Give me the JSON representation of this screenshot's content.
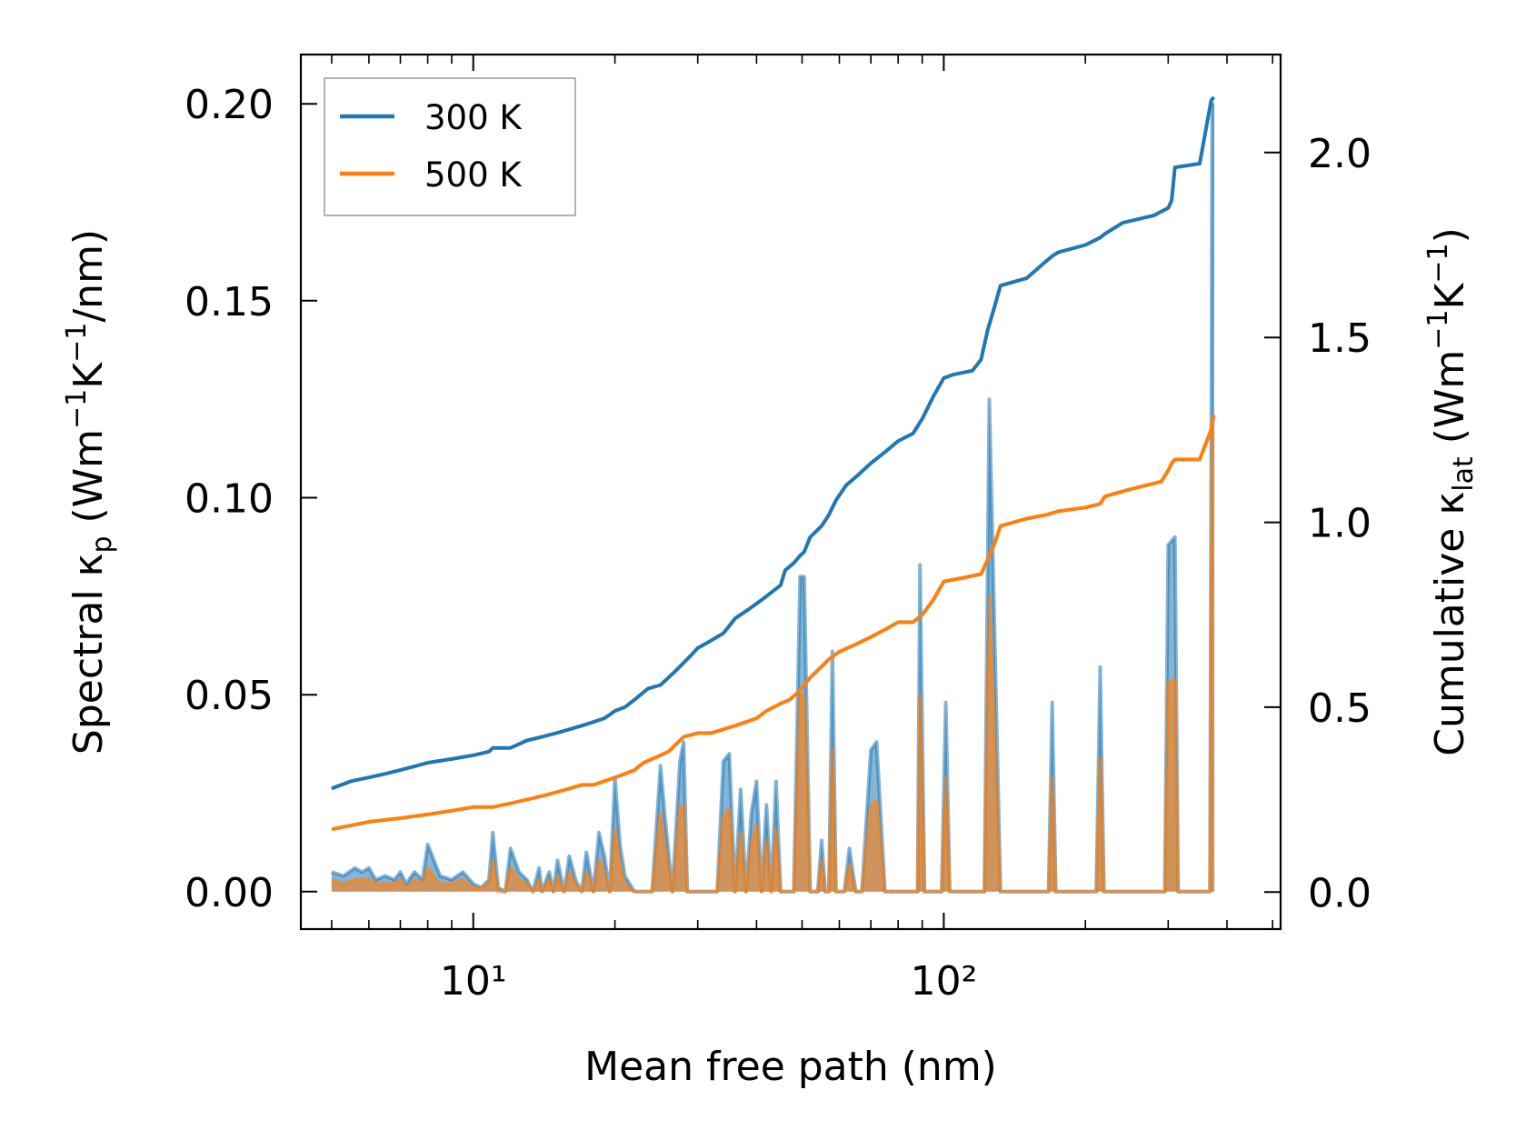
{
  "chart_data": {
    "type": "line",
    "x_scale": "log",
    "xlabel": "Mean free path (nm)",
    "ylabel_left": "Spectral κp (Wm−1K−1/nm)",
    "ylabel_right": "Cumulative κlat (Wm−1K−1)",
    "xlim": [
      4.3,
      520
    ],
    "ylim_left": [
      -0.0095,
      0.2125
    ],
    "ylim_right": [
      -0.1,
      2.265
    ],
    "x_ticks": [
      10,
      100
    ],
    "x_tick_labels": [
      "10¹",
      "10²"
    ],
    "y_left_ticks": [
      0.0,
      0.05,
      0.1,
      0.15,
      0.2
    ],
    "y_left_tick_labels": [
      "0.00",
      "0.05",
      "0.10",
      "0.15",
      "0.20"
    ],
    "y_right_ticks": [
      0.0,
      0.5,
      1.0,
      1.5,
      2.0
    ],
    "y_right_tick_labels": [
      "0.0",
      "0.5",
      "1.0",
      "1.5",
      "2.0"
    ],
    "legend": {
      "position": "top-left",
      "entries": [
        "300 K",
        "500 K"
      ]
    },
    "colors": {
      "300 K": "#1f77b4",
      "500 K": "#ff7f0e"
    },
    "series_cumulative": [
      {
        "name": "300 K",
        "axis": "right",
        "x": [
          5.0,
          5.5,
          6.0,
          6.5,
          7.0,
          7.5,
          8.0,
          9.0,
          10.0,
          10.8,
          11.0,
          12.0,
          12.5,
          13.0,
          14.0,
          15.0,
          16.0,
          17.0,
          18.0,
          19.0,
          19.5,
          20.0,
          21.0,
          22.0,
          23.5,
          25.0,
          26.0,
          27.0,
          28.0,
          29.0,
          30.0,
          32.0,
          34.0,
          35.0,
          36.0,
          38.0,
          40.0,
          41.0,
          42.0,
          45.0,
          46.0,
          48.0,
          49.5,
          50.5,
          52.0,
          55.0,
          57.0,
          58.0,
          59.0,
          62.0,
          66.0,
          70.0,
          75.0,
          80.0,
          86.0,
          88.0,
          90.0,
          95.0,
          100.0,
          105.0,
          115.0,
          120.0,
          124.0,
          128.0,
          132.0,
          150.0,
          163.0,
          170.0,
          175.0,
          200.0,
          215.0,
          220.0,
          240.0,
          280.0,
          300.0,
          305.0,
          310.0,
          350.0,
          370.0,
          375.0
        ],
        "y": [
          0.28,
          0.3,
          0.31,
          0.32,
          0.33,
          0.34,
          0.35,
          0.36,
          0.37,
          0.38,
          0.39,
          0.39,
          0.4,
          0.41,
          0.42,
          0.43,
          0.44,
          0.45,
          0.46,
          0.47,
          0.48,
          0.49,
          0.5,
          0.52,
          0.55,
          0.56,
          0.58,
          0.6,
          0.62,
          0.64,
          0.66,
          0.68,
          0.7,
          0.72,
          0.74,
          0.76,
          0.78,
          0.79,
          0.8,
          0.83,
          0.87,
          0.89,
          0.91,
          0.92,
          0.96,
          0.99,
          1.02,
          1.04,
          1.06,
          1.1,
          1.13,
          1.16,
          1.19,
          1.22,
          1.24,
          1.26,
          1.28,
          1.34,
          1.39,
          1.4,
          1.41,
          1.44,
          1.52,
          1.58,
          1.64,
          1.66,
          1.7,
          1.72,
          1.73,
          1.75,
          1.77,
          1.78,
          1.81,
          1.83,
          1.85,
          1.87,
          1.96,
          1.97,
          2.14,
          2.15
        ]
      },
      {
        "name": "500 K",
        "axis": "right",
        "x": [
          5.0,
          6.0,
          7.0,
          8.0,
          9.0,
          10.0,
          11.0,
          12.0,
          13.0,
          14.0,
          15.0,
          16.0,
          17.0,
          18.0,
          19.0,
          20.0,
          21.0,
          22.0,
          23.0,
          24.0,
          25.0,
          26.0,
          27.0,
          28.0,
          30.0,
          32.0,
          34.0,
          36.0,
          38.0,
          40.0,
          42.0,
          45.0,
          47.0,
          49.0,
          50.5,
          52.0,
          55.0,
          57.0,
          60.0,
          65.0,
          70.0,
          75.0,
          80.0,
          86.0,
          90.0,
          95.0,
          100.0,
          110.0,
          120.0,
          124.0,
          128.0,
          132.0,
          150.0,
          165.0,
          175.0,
          200.0,
          215.0,
          220.0,
          250.0,
          290.0,
          300.0,
          305.0,
          310.0,
          350.0,
          370.0,
          375.0
        ],
        "y": [
          0.17,
          0.19,
          0.2,
          0.21,
          0.22,
          0.23,
          0.23,
          0.24,
          0.25,
          0.26,
          0.27,
          0.28,
          0.29,
          0.29,
          0.3,
          0.31,
          0.32,
          0.33,
          0.35,
          0.36,
          0.37,
          0.38,
          0.4,
          0.42,
          0.43,
          0.43,
          0.44,
          0.45,
          0.46,
          0.47,
          0.49,
          0.51,
          0.52,
          0.54,
          0.56,
          0.58,
          0.61,
          0.63,
          0.65,
          0.67,
          0.69,
          0.71,
          0.73,
          0.73,
          0.75,
          0.79,
          0.84,
          0.85,
          0.86,
          0.9,
          0.94,
          0.99,
          1.01,
          1.02,
          1.03,
          1.04,
          1.05,
          1.07,
          1.09,
          1.11,
          1.14,
          1.16,
          1.17,
          1.17,
          1.25,
          1.29
        ]
      }
    ],
    "series_spectral": [
      {
        "name": "300 K",
        "axis": "left",
        "fill": true,
        "x": [
          5.0,
          5.3,
          5.6,
          5.8,
          6.0,
          6.2,
          6.5,
          6.8,
          7.0,
          7.2,
          7.5,
          7.8,
          8.0,
          8.5,
          9.0,
          9.5,
          10.0,
          10.4,
          10.8,
          11.0,
          11.3,
          11.7,
          12.0,
          12.5,
          13.0,
          13.4,
          13.8,
          14.0,
          14.5,
          14.8,
          15.1,
          15.6,
          16.0,
          16.5,
          17.0,
          17.4,
          18.0,
          18.5,
          19.0,
          19.5,
          20.0,
          20.5,
          21.0,
          22.0,
          23.0,
          24.0,
          25.0,
          25.5,
          26.5,
          27.5,
          28.0,
          28.5,
          29.0,
          30.0,
          33.0,
          34.0,
          35.0,
          36.0,
          37.0,
          38.0,
          39.0,
          40.0,
          41.0,
          42.0,
          43.0,
          44.0,
          45.0,
          46.0,
          48.0,
          49.5,
          50.5,
          52.0,
          54.0,
          55.0,
          56.0,
          57.0,
          58.0,
          59.0,
          60.0,
          61.5,
          63.0,
          65.0,
          67.0,
          70.0,
          72.0,
          75.0,
          80.0,
          85.0,
          88.0,
          89.0,
          91.0,
          95.0,
          99.0,
          101.0,
          103.0,
          108.0,
          118.0,
          122.0,
          125.0,
          128.0,
          132.0,
          160.0,
          167.0,
          170.0,
          173.0,
          205.0,
          211.0,
          215.0,
          219.0,
          285.0,
          295.0,
          300.0,
          310.0,
          315.0,
          355.0,
          368.0,
          372.0,
          376.0
        ],
        "y": [
          0.005,
          0.004,
          0.006,
          0.005,
          0.006,
          0.003,
          0.004,
          0.003,
          0.005,
          0.002,
          0.005,
          0.003,
          0.012,
          0.004,
          0.003,
          0.005,
          0.002,
          0.001,
          0.003,
          0.015,
          0.001,
          0.0,
          0.011,
          0.005,
          0.003,
          0.0,
          0.006,
          0.0,
          0.005,
          0.0,
          0.008,
          0.0,
          0.009,
          0.003,
          0.0,
          0.01,
          0.0,
          0.015,
          0.009,
          0.0,
          0.029,
          0.012,
          0.004,
          0.0,
          0.0,
          0.0,
          0.032,
          0.02,
          0.0,
          0.033,
          0.038,
          0.0,
          0.0,
          0.0,
          0.0,
          0.033,
          0.035,
          0.0,
          0.026,
          0.0,
          0.02,
          0.028,
          0.0,
          0.022,
          0.0,
          0.028,
          0.0,
          0.0,
          0.0,
          0.08,
          0.08,
          0.0,
          0.0,
          0.013,
          0.0,
          0.0,
          0.061,
          0.0,
          0.0,
          0.0,
          0.011,
          0.0,
          0.0,
          0.036,
          0.038,
          0.0,
          0.0,
          0.0,
          0.0,
          0.083,
          0.0,
          0.0,
          0.0,
          0.048,
          0.0,
          0.0,
          0.0,
          0.0,
          0.125,
          0.07,
          0.0,
          0.0,
          0.0,
          0.048,
          0.0,
          0.0,
          0.0,
          0.057,
          0.0,
          0.0,
          0.0,
          0.088,
          0.09,
          0.0,
          0.0,
          0.0,
          0.2,
          0.2
        ]
      },
      {
        "name": "500 K",
        "axis": "left",
        "fill": true,
        "x": [
          5.0,
          5.3,
          5.6,
          5.8,
          6.0,
          6.2,
          6.5,
          6.8,
          7.0,
          7.2,
          7.5,
          7.8,
          8.0,
          8.5,
          9.0,
          9.5,
          10.0,
          10.4,
          10.8,
          11.0,
          11.3,
          11.7,
          12.0,
          12.5,
          13.0,
          13.4,
          13.8,
          14.0,
          14.5,
          14.8,
          15.1,
          15.6,
          16.0,
          16.5,
          17.0,
          17.4,
          18.0,
          18.5,
          19.0,
          19.5,
          20.0,
          20.5,
          21.0,
          22.0,
          23.0,
          24.0,
          25.0,
          25.5,
          26.5,
          27.5,
          28.0,
          28.5,
          29.0,
          30.0,
          33.0,
          34.0,
          35.0,
          36.0,
          37.0,
          38.0,
          39.0,
          40.0,
          41.0,
          42.0,
          43.0,
          44.0,
          45.0,
          46.0,
          48.0,
          49.5,
          50.5,
          52.0,
          54.0,
          55.0,
          56.0,
          57.0,
          58.0,
          59.0,
          60.0,
          61.5,
          63.0,
          65.0,
          67.0,
          70.0,
          72.0,
          75.0,
          80.0,
          85.0,
          88.0,
          89.0,
          91.0,
          95.0,
          99.0,
          101.0,
          103.0,
          108.0,
          118.0,
          122.0,
          125.0,
          128.0,
          132.0,
          160.0,
          167.0,
          170.0,
          173.0,
          205.0,
          211.0,
          215.0,
          219.0,
          285.0,
          295.0,
          300.0,
          310.0,
          315.0,
          355.0,
          368.0,
          372.0,
          376.0
        ],
        "y": [
          0.003,
          0.002,
          0.003,
          0.003,
          0.003,
          0.002,
          0.002,
          0.002,
          0.003,
          0.001,
          0.003,
          0.002,
          0.006,
          0.002,
          0.002,
          0.003,
          0.001,
          0.001,
          0.002,
          0.008,
          0.0,
          0.0,
          0.006,
          0.003,
          0.002,
          0.0,
          0.003,
          0.0,
          0.003,
          0.0,
          0.004,
          0.0,
          0.005,
          0.002,
          0.0,
          0.005,
          0.0,
          0.008,
          0.005,
          0.0,
          0.016,
          0.007,
          0.002,
          0.0,
          0.0,
          0.0,
          0.02,
          0.012,
          0.0,
          0.021,
          0.022,
          0.0,
          0.0,
          0.0,
          0.0,
          0.019,
          0.021,
          0.0,
          0.015,
          0.0,
          0.012,
          0.017,
          0.0,
          0.013,
          0.0,
          0.016,
          0.0,
          0.0,
          0.0,
          0.05,
          0.05,
          0.0,
          0.0,
          0.008,
          0.0,
          0.0,
          0.036,
          0.0,
          0.0,
          0.0,
          0.007,
          0.0,
          0.0,
          0.022,
          0.023,
          0.0,
          0.0,
          0.0,
          0.0,
          0.05,
          0.0,
          0.0,
          0.0,
          0.029,
          0.0,
          0.0,
          0.0,
          0.0,
          0.075,
          0.042,
          0.0,
          0.0,
          0.0,
          0.029,
          0.0,
          0.0,
          0.0,
          0.034,
          0.0,
          0.0,
          0.0,
          0.053,
          0.054,
          0.0,
          0.0,
          0.0,
          0.12,
          0.12
        ]
      }
    ]
  }
}
